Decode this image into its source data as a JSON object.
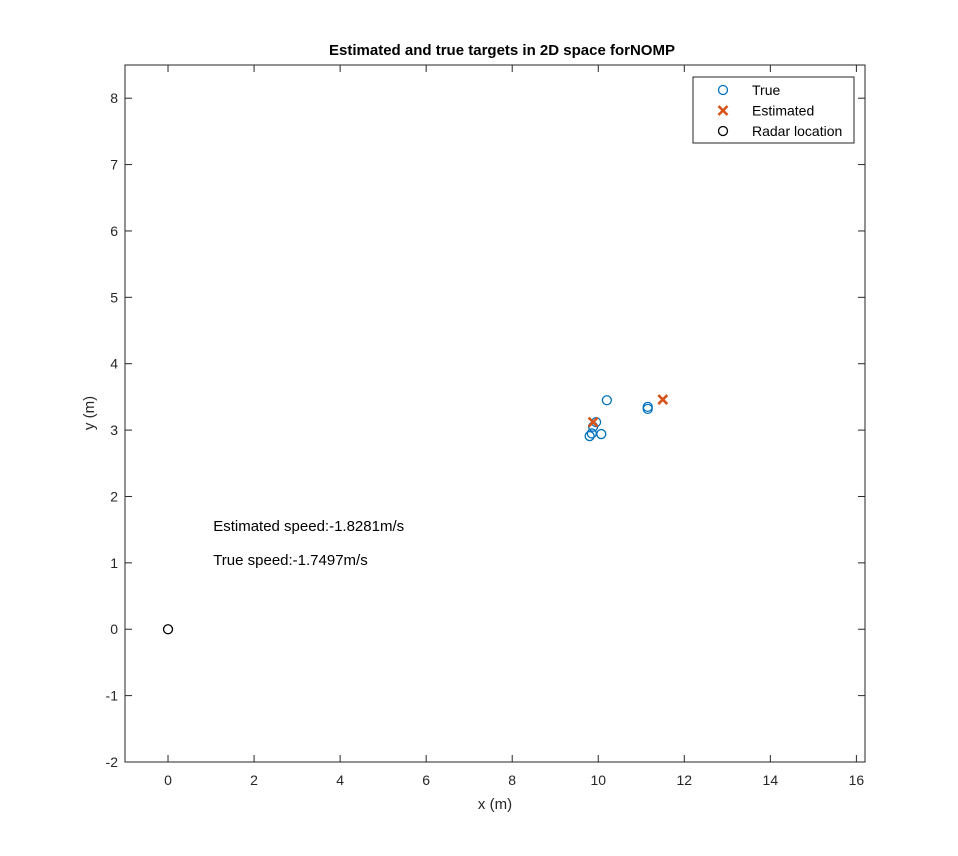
{
  "chart_data": {
    "type": "scatter",
    "title": "Estimated and true targets in 2D space forNOMP",
    "xlabel": "x (m)",
    "ylabel": "y (m)",
    "xlim": [
      -1,
      16.2
    ],
    "ylim": [
      -2,
      8.5
    ],
    "xticks": [
      0,
      2,
      4,
      6,
      8,
      10,
      12,
      14,
      16
    ],
    "yticks": [
      -2,
      -1,
      0,
      1,
      2,
      3,
      4,
      5,
      6,
      7,
      8
    ],
    "grid": false,
    "legend_placement": "top-right",
    "series": [
      {
        "name": "True",
        "marker": "circle",
        "color": "#0072BD",
        "points": [
          {
            "x": 10.2,
            "y": 3.45
          },
          {
            "x": 11.15,
            "y": 3.35
          },
          {
            "x": 11.15,
            "y": 3.32
          },
          {
            "x": 9.95,
            "y": 3.12
          },
          {
            "x": 9.88,
            "y": 3.05
          },
          {
            "x": 9.85,
            "y": 2.95
          },
          {
            "x": 9.8,
            "y": 2.91
          },
          {
            "x": 10.07,
            "y": 2.94
          }
        ]
      },
      {
        "name": "Estimated",
        "marker": "x",
        "color": "#D95319",
        "points": [
          {
            "x": 11.5,
            "y": 3.46
          },
          {
            "x": 9.88,
            "y": 3.12
          }
        ]
      },
      {
        "name": "Radar location",
        "marker": "circle",
        "color": "#000000",
        "points": [
          {
            "x": 0,
            "y": 0
          }
        ]
      }
    ],
    "annotations": [
      {
        "text": "Estimated speed:-1.8281m/s",
        "x": 1.05,
        "y": 1.48
      },
      {
        "text": "True speed:-1.7497m/s",
        "x": 1.05,
        "y": 0.97
      }
    ]
  }
}
